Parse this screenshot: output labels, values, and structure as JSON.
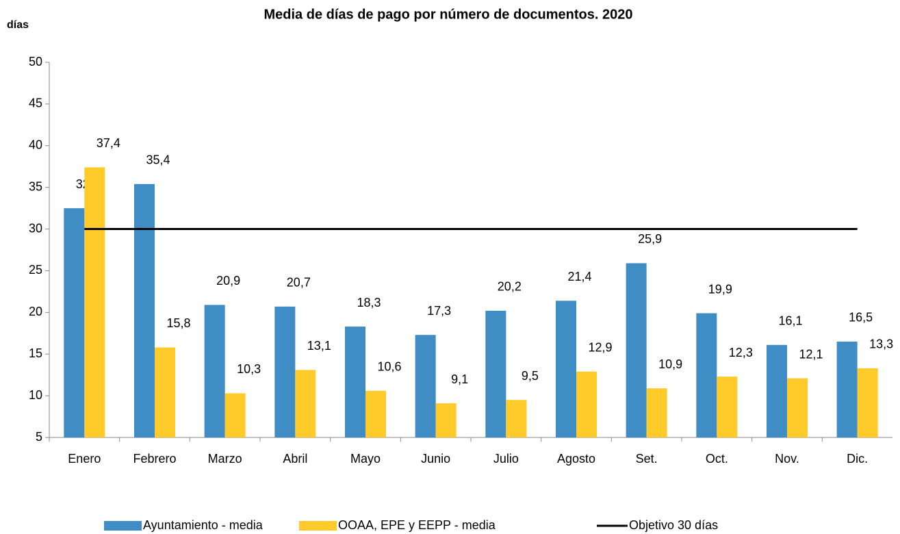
{
  "chart_data": {
    "type": "bar",
    "title": "Media de días de pago por número de documentos. 2020",
    "y_label": "días",
    "categories": [
      "Enero",
      "Febrero",
      "Marzo",
      "Abril",
      "Mayo",
      "Junio",
      "Julio",
      "Agosto",
      "Set.",
      "Oct.",
      "Nov.",
      "Dic."
    ],
    "series": [
      {
        "name": "Ayuntamiento - media",
        "color": "#3f8dc4",
        "values": [
          32.5,
          35.4,
          20.9,
          20.7,
          18.3,
          17.3,
          20.2,
          21.4,
          25.9,
          19.9,
          16.1,
          16.5
        ],
        "value_labels": [
          "32,5",
          "35,4",
          "20,9",
          "20,7",
          "18,3",
          "17,3",
          "20,2",
          "21,4",
          "25,9",
          "19,9",
          "16,1",
          "16,5"
        ]
      },
      {
        "name": "OOAA, EPE y EEPP - media",
        "color": "#ffcb2a",
        "values": [
          37.4,
          15.8,
          10.3,
          13.1,
          10.6,
          9.1,
          9.5,
          12.9,
          10.9,
          12.3,
          12.1,
          13.3
        ],
        "value_labels": [
          "37,4",
          "15,8",
          "10,3",
          "13,1",
          "10,6",
          "9,1",
          "9,5",
          "12,9",
          "10,9",
          "12,3",
          "12,1",
          "13,3"
        ]
      },
      {
        "name": "Objetivo 30 días",
        "color": "#000000",
        "type": "line",
        "values": [
          30,
          30,
          30,
          30,
          30,
          30,
          30,
          30,
          30,
          30,
          30,
          30
        ]
      }
    ],
    "ylim": [
      5,
      50
    ],
    "yticks": [
      5,
      10,
      15,
      20,
      25,
      30,
      35,
      40,
      45,
      50
    ],
    "legend": "bottom"
  }
}
